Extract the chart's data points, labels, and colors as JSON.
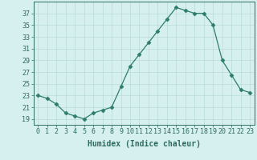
{
  "x": [
    0,
    1,
    2,
    3,
    4,
    5,
    6,
    7,
    8,
    9,
    10,
    11,
    12,
    13,
    14,
    15,
    16,
    17,
    18,
    19,
    20,
    21,
    22,
    23
  ],
  "y": [
    23,
    22.5,
    21.5,
    20,
    19.5,
    19,
    20,
    20.5,
    21,
    24.5,
    28,
    30,
    32,
    34,
    36,
    38,
    37.5,
    37,
    37,
    35,
    29,
    26.5,
    24,
    23.5
  ],
  "line_color": "#2d7d6b",
  "marker": "D",
  "marker_size": 2.5,
  "bg_color": "#d6f0ef",
  "grid_color": "#b8dbd8",
  "xlabel": "Humidex (Indice chaleur)",
  "xlim": [
    -0.5,
    23.5
  ],
  "ylim": [
    18,
    39
  ],
  "xticks": [
    0,
    1,
    2,
    3,
    4,
    5,
    6,
    7,
    8,
    9,
    10,
    11,
    12,
    13,
    14,
    15,
    16,
    17,
    18,
    19,
    20,
    21,
    22,
    23
  ],
  "yticks": [
    19,
    21,
    23,
    25,
    27,
    29,
    31,
    33,
    35,
    37
  ],
  "tick_color": "#2d6b60",
  "axis_color": "#2d6b60",
  "label_fontsize": 7,
  "tick_fontsize": 6
}
